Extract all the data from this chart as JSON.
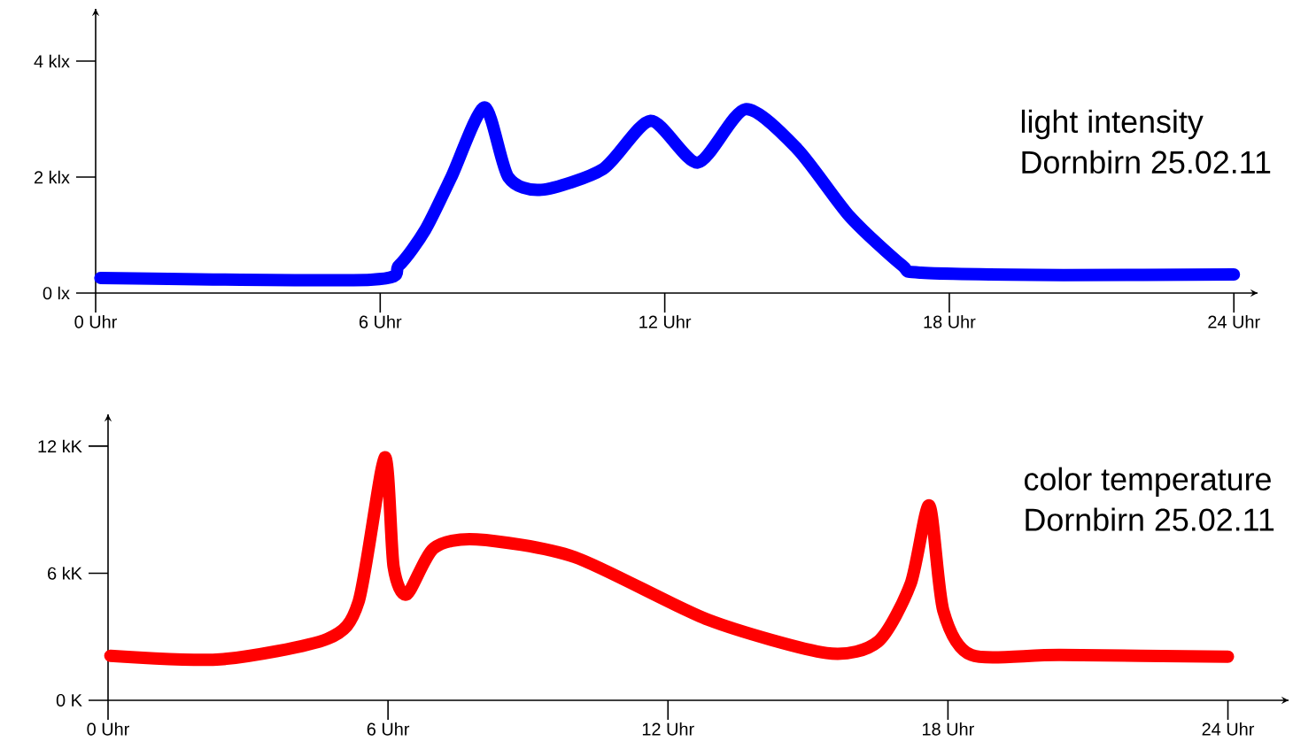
{
  "chart_data": [
    {
      "type": "line",
      "title": "light intensity",
      "subtitle": "Dornbirn 25.02.11",
      "x": [
        0.1,
        5.8,
        6.4,
        6.95,
        7.5,
        8.2,
        8.7,
        9.4,
        10.7,
        11.7,
        12.7,
        13.7,
        14.8,
        15.9,
        17.0,
        17.4,
        20.4,
        24
      ],
      "series": [
        {
          "color": "#0000ff",
          "values": [
            0.26,
            0.23,
            0.48,
            1.09,
            2.0,
            3.2,
            2.0,
            1.78,
            2.14,
            2.97,
            2.25,
            3.17,
            2.48,
            1.32,
            0.48,
            0.35,
            0.31,
            0.32
          ]
        }
      ],
      "xlim": [
        0,
        24.5
      ],
      "ylim": [
        0,
        4.9
      ],
      "xticks": [
        {
          "value": 0,
          "label": "0 Uhr"
        },
        {
          "value": 6,
          "label": "6 Uhr"
        },
        {
          "value": 12,
          "label": "12 Uhr"
        },
        {
          "value": 18,
          "label": "18 Uhr"
        },
        {
          "value": 24,
          "label": "24 Uhr"
        }
      ],
      "yticks": [
        {
          "value": 0,
          "label": "0 lx"
        },
        {
          "value": 2,
          "label": "2 klx"
        },
        {
          "value": 4,
          "label": "4 klx"
        }
      ]
    },
    {
      "type": "line",
      "title": "color temperature",
      "subtitle": "Dornbirn 25.02.11",
      "x": [
        0.05,
        2.4,
        4.7,
        5.37,
        5.93,
        6.12,
        6.4,
        6.98,
        7.9,
        10.0,
        12.86,
        15.4,
        16.5,
        17.2,
        17.6,
        17.9,
        18.5,
        20.4,
        24
      ],
      "series": [
        {
          "color": "#ff0000",
          "values": [
            2.1,
            1.93,
            2.9,
            4.66,
            11.47,
            6.3,
            5.0,
            7.18,
            7.6,
            6.76,
            3.8,
            2.23,
            2.77,
            5.5,
            9.2,
            4.24,
            2.14,
            2.14,
            2.06
          ]
        }
      ],
      "xlim": [
        0,
        25.3
      ],
      "ylim": [
        0,
        13.5
      ],
      "xticks": [
        {
          "value": 0,
          "label": "0 Uhr"
        },
        {
          "value": 6,
          "label": "6 Uhr"
        },
        {
          "value": 12,
          "label": "12 Uhr"
        },
        {
          "value": 18,
          "label": "18 Uhr"
        },
        {
          "value": 24,
          "label": "24 Uhr"
        }
      ],
      "yticks": [
        {
          "value": 0,
          "label": "0 K"
        },
        {
          "value": 6,
          "label": "6 kK"
        },
        {
          "value": 12,
          "label": "12 kK"
        }
      ]
    }
  ]
}
